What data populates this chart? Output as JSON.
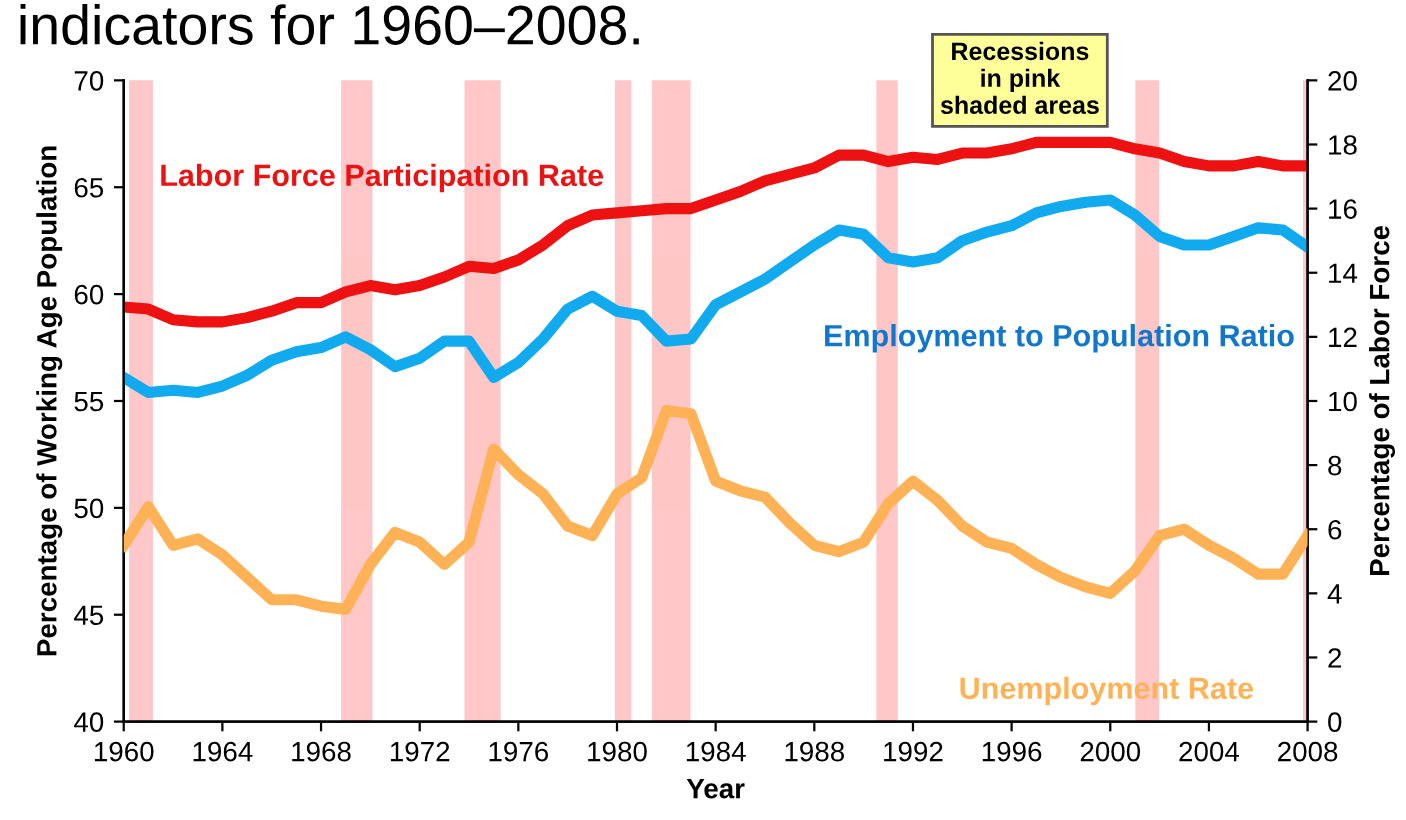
{
  "chart_data": {
    "type": "line",
    "title": "indicators for 1960–2008.",
    "xlabel": "Year",
    "ylabel": "Percentage of Working Age Population",
    "y2label": "Percentage of Labor Force",
    "x": [
      1960,
      1961,
      1962,
      1963,
      1964,
      1965,
      1966,
      1967,
      1968,
      1969,
      1970,
      1971,
      1972,
      1973,
      1974,
      1975,
      1976,
      1977,
      1978,
      1979,
      1980,
      1981,
      1982,
      1983,
      1984,
      1985,
      1986,
      1987,
      1988,
      1989,
      1990,
      1991,
      1992,
      1993,
      1994,
      1995,
      1996,
      1997,
      1998,
      1999,
      2000,
      2001,
      2002,
      2003,
      2004,
      2005,
      2006,
      2007,
      2008
    ],
    "series": [
      {
        "name": "Labor Force Participation Rate",
        "color": "#ee1111",
        "values": [
          59.4,
          59.3,
          58.8,
          58.7,
          58.7,
          58.9,
          59.2,
          59.6,
          59.6,
          60.1,
          60.4,
          60.2,
          60.4,
          60.8,
          61.3,
          61.2,
          61.6,
          62.3,
          63.2,
          63.7,
          63.8,
          63.9,
          64.0,
          64.0,
          64.4,
          64.8,
          65.3,
          65.6,
          65.9,
          66.5,
          66.5,
          66.2,
          66.4,
          66.3,
          66.6,
          66.6,
          66.8,
          67.1,
          67.1,
          67.1,
          67.1,
          66.8,
          66.6,
          66.2,
          66.0,
          66.0,
          66.2,
          66.0,
          66.0
        ]
      },
      {
        "name": "Employment to Population Ratio",
        "color": "#11aaee",
        "values": [
          56.1,
          55.4,
          55.5,
          55.4,
          55.7,
          56.2,
          56.9,
          57.3,
          57.5,
          58.0,
          57.4,
          56.6,
          57.0,
          57.8,
          57.8,
          56.1,
          56.8,
          57.9,
          59.3,
          59.9,
          59.2,
          59.0,
          57.8,
          57.9,
          59.5,
          60.1,
          60.7,
          61.5,
          62.3,
          63.0,
          62.8,
          61.7,
          61.5,
          61.7,
          62.5,
          62.9,
          63.2,
          63.8,
          64.1,
          64.3,
          64.4,
          63.7,
          62.7,
          62.3,
          62.3,
          62.7,
          63.1,
          63.0,
          62.2
        ]
      },
      {
        "name": "Unemployment Rate",
        "color": "#ffb255",
        "axis": "y2",
        "values": [
          5.5,
          6.7,
          5.5,
          5.7,
          5.2,
          4.5,
          3.8,
          3.8,
          3.6,
          3.5,
          4.9,
          5.9,
          5.6,
          4.9,
          5.6,
          8.5,
          7.7,
          7.1,
          6.1,
          5.8,
          7.1,
          7.6,
          9.7,
          9.6,
          7.5,
          7.2,
          7.0,
          6.2,
          5.5,
          5.3,
          5.6,
          6.8,
          7.5,
          6.9,
          6.1,
          5.6,
          5.4,
          4.9,
          4.5,
          4.2,
          4.0,
          4.7,
          5.8,
          6.0,
          5.5,
          5.1,
          4.6,
          4.6,
          5.8
        ]
      }
    ],
    "xlim": [
      1960,
      2008
    ],
    "xticks": [
      1960,
      1964,
      1968,
      1972,
      1976,
      1980,
      1984,
      1988,
      1992,
      1996,
      2000,
      2004,
      2008
    ],
    "ylim": [
      40,
      70
    ],
    "yticks": [
      40,
      45,
      50,
      55,
      60,
      65,
      70
    ],
    "y2lim": [
      0,
      20
    ],
    "y2ticks": [
      0,
      2,
      4,
      6,
      8,
      10,
      12,
      14,
      16,
      18,
      20
    ],
    "bands": [
      {
        "axis": "x",
        "from": 1960.3,
        "to": 1961.1,
        "label": null,
        "color": "#ff9999"
      },
      {
        "axis": "x",
        "from": 1968.9,
        "to": 1970.0,
        "label": null,
        "color": "#ff9999"
      },
      {
        "axis": "x",
        "from": 1973.9,
        "to": 1975.2,
        "label": null,
        "color": "#ff9999"
      },
      {
        "axis": "x",
        "from": 1980.0,
        "to": 1980.5,
        "label": null,
        "color": "#ff9999"
      },
      {
        "axis": "x",
        "from": 1981.5,
        "to": 1982.9,
        "label": null,
        "color": "#ff9999"
      },
      {
        "axis": "x",
        "from": 1990.6,
        "to": 1991.3,
        "label": null,
        "color": "#ff9999"
      },
      {
        "axis": "x",
        "from": 2001.1,
        "to": 2001.9,
        "label": null,
        "color": "#ff9999"
      },
      {
        "axis": "x",
        "from": 2007.9,
        "to": 2008.0,
        "label": null,
        "color": "#ff9999"
      }
    ],
    "annotations": [
      "Recessions\nin pink\nshaded areas"
    ],
    "grid": false,
    "legend": false,
    "marker": "none",
    "line_style": "solid"
  }
}
